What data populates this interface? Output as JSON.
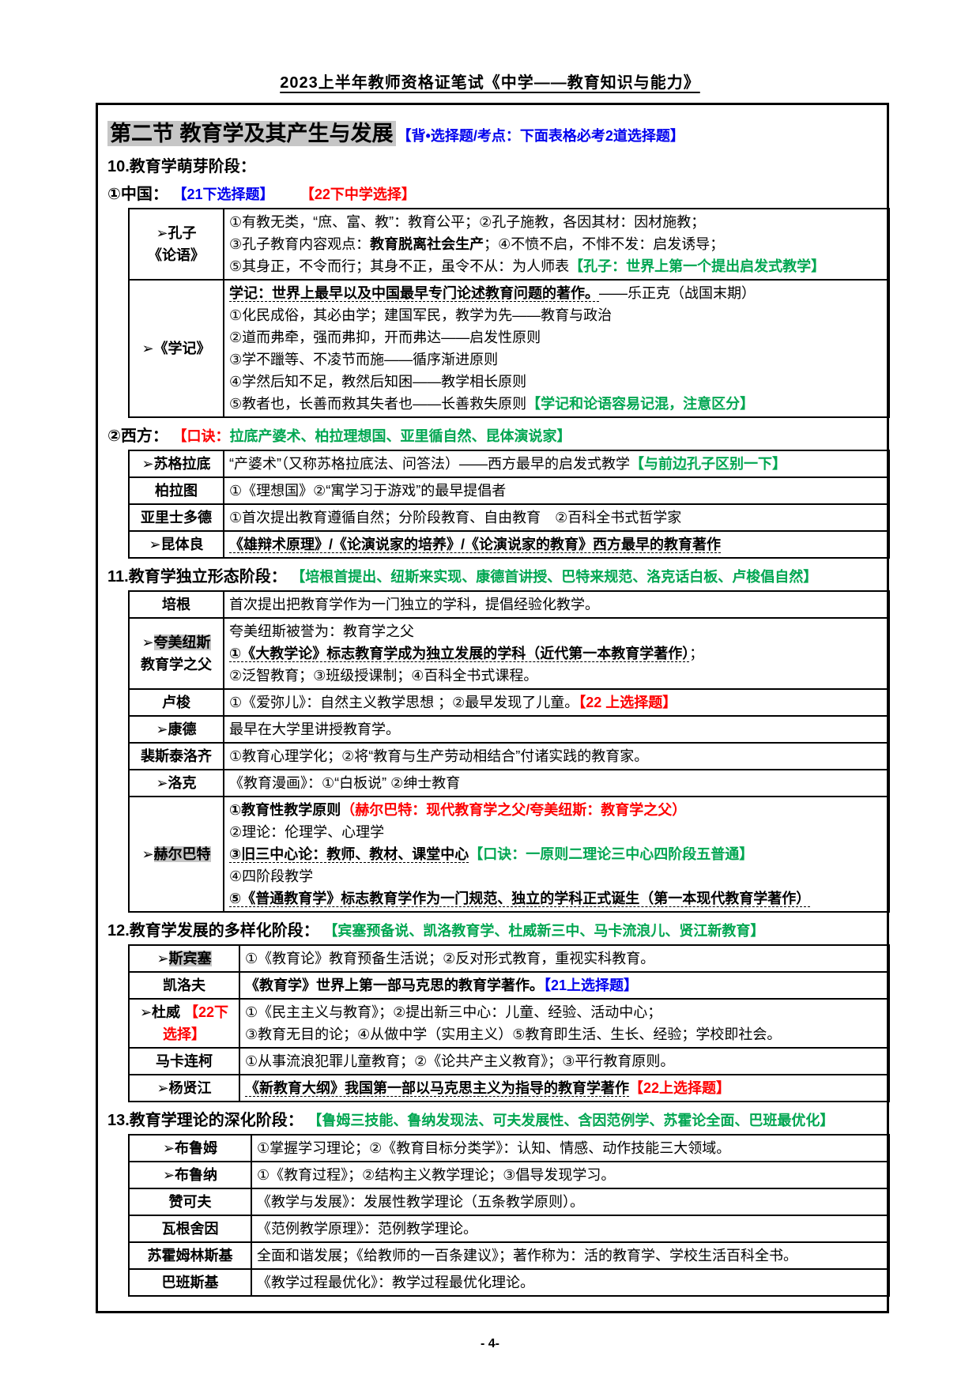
{
  "page": {
    "header": "2023上半年教师资格证笔试《中学——教育知识与能力》",
    "footer": "- 4-"
  },
  "section": {
    "title": "第二节 教育学及其产生与发展",
    "note": "【背•选择题/考点：下面表格必考2道选择题】"
  },
  "colors": {
    "green": "#00a651",
    "red": "#fe0000",
    "blue": "#0000ee",
    "highlight": "#c6c6c6"
  },
  "headings": {
    "stage10": "10.教育学萌芽阶段：",
    "china": [
      {
        "t": "①中国： ",
        "b": 1
      },
      {
        "t": "【21下选择题】",
        "c": "b",
        "b": 1,
        "n": "exam-tag-blue"
      },
      {
        "t": "      "
      },
      {
        "t": "【22下中学选择】",
        "c": "r",
        "b": 1,
        "n": "exam-tag-red"
      }
    ],
    "west": [
      {
        "t": "②西方： ",
        "b": 1
      },
      {
        "t": "【口诀：",
        "c": "r",
        "b": 1,
        "n": "mnemonic-bracket"
      },
      {
        "t": "拉底产婆术、柏拉理想国、亚里循自然、昆体演说家】",
        "c": "g",
        "b": 1,
        "n": "mnemonic-text"
      }
    ],
    "stage11": [
      {
        "t": "11.教育学独立形态阶段： ",
        "b": 1
      },
      {
        "t": "【培根首提出、纽斯来实现、康德首讲授、巴特来规范、洛克话白板、卢梭倡自然】",
        "c": "g",
        "b": 1,
        "n": "mnemonic-text"
      }
    ],
    "stage12": [
      {
        "t": "12.教育学发展的多样化阶段： ",
        "b": 1
      },
      {
        "t": "【宾塞预备说、凯洛教育学、杜威新三中、马卡流浪儿、贤江新教育】",
        "c": "g",
        "b": 1,
        "n": "mnemonic-text"
      }
    ],
    "stage13": [
      {
        "t": "13.教育学理论的深化阶段： ",
        "b": 1
      },
      {
        "t": "【鲁姆三技能、鲁纳发现法、可夫发展性、含因范例学、苏霍论全面、巴班最优化】",
        "c": "g",
        "b": 1,
        "n": "mnemonic-text"
      }
    ]
  },
  "tables": {
    "china": {
      "rows": [
        {
          "head": [
            [
              {
                "t": "➢孔子",
                "b": 1
              }
            ],
            [
              {
                "t": "《论语》",
                "b": 1
              }
            ]
          ],
          "lines": [
            [
              "①有教无类，“庶、富、教”：教育公平；②孔子施教，各因其材：因材施教；"
            ],
            [
              "③孔子教育内容观点：",
              {
                "t": "教育脱离社会生产",
                "b": 1
              },
              "；④不愤不启，不悱不发：启发诱导；"
            ],
            [
              "⑤其身正，不令而行；其身不正，虽令不从：为人师表",
              {
                "t": "【孔子：世界上第一个提出启发式教学】",
                "c": "g",
                "b": 1,
                "n": "note-green"
              }
            ]
          ]
        },
        {
          "head": [
            [
              {
                "t": "➢《学记》",
                "b": 1
              }
            ]
          ],
          "lines": [
            [
              {
                "t": "学记：世界上最早以及中国最早专门论述教育问题的著作。",
                "b": 1,
                "u": 1
              },
              "——乐正克（战国末期）"
            ],
            [
              "①化民成俗，其必由学；建国军民，教学为先——教育与政治"
            ],
            [
              "②道而弗牵，强而弗抑，开而弗达——启发性原则"
            ],
            [
              "③学不躐等、不凌节而施——循序渐进原则"
            ],
            [
              "④学然后知不足，教然后知困——教学相长原则"
            ],
            [
              "⑤教者也，长善而救其失者也——长善救失原则",
              {
                "t": "【学记和论语容易记混，注意区分】",
                "c": "g",
                "b": 1,
                "n": "note-green"
              }
            ]
          ]
        }
      ]
    },
    "west": {
      "rows": [
        {
          "head": [
            [
              {
                "t": "➢苏格拉底",
                "b": 1
              }
            ]
          ],
          "lines": [
            [
              "“产婆术”（又称苏格拉底法、问答法）——西方最早的启发式教学",
              {
                "t": "【与前边孔子区别一下】",
                "c": "g",
                "b": 1,
                "n": "note-green"
              }
            ]
          ]
        },
        {
          "head": [
            [
              "柏拉图"
            ]
          ],
          "lines": [
            [
              "①《理想国》②“寓学习于游戏”的最早提倡者"
            ]
          ]
        },
        {
          "head": [
            [
              "亚里士多德"
            ]
          ],
          "lines": [
            [
              "①首次提出教育遵循自然；分阶段教育、自由教育　②百科全书式哲学家"
            ]
          ]
        },
        {
          "head": [
            [
              {
                "t": "➢昆体良",
                "b": 1
              }
            ]
          ],
          "lines": [
            [
              {
                "t": "《雄辩术原理》/《论演说家的培养》/《论演说家的教育》西方最早的教育著作",
                "b": 1,
                "u": 1
              }
            ]
          ]
        }
      ]
    },
    "independent": {
      "rows": [
        {
          "head": [
            [
              "培根"
            ]
          ],
          "lines": [
            [
              "首次提出把教育学作为一门独立的学科，提倡经验化教学。"
            ]
          ]
        },
        {
          "head": [
            [
              {
                "t": "➢",
                "b": 1
              },
              {
                "t": "夸美纽斯",
                "b": 1,
                "h": 1
              }
            ],
            [
              {
                "t": "教育学之父",
                "b": 1
              }
            ]
          ],
          "lines": [
            [
              "夸美纽斯被誉为：教育学之父"
            ],
            [
              {
                "t": "①《大教学论》标志教育学成为独立发展的学科（近代第一本教育学著作）",
                "b": 1,
                "u": 1
              },
              "；"
            ],
            [
              "②泛智教育；③班级授课制；④百科全书式课程。"
            ]
          ]
        },
        {
          "head": [
            [
              "卢梭"
            ]
          ],
          "lines": [
            [
              "①《爱弥儿》：自然主义教学思想 ；②最早发现了儿童。",
              {
                "t": "【22 上选择题】",
                "c": "r",
                "b": 1,
                "n": "exam-tag-red"
              }
            ]
          ]
        },
        {
          "head": [
            [
              {
                "t": "➢康德",
                "b": 1
              }
            ]
          ],
          "lines": [
            [
              "最早在大学里讲授教育学。"
            ]
          ]
        },
        {
          "head": [
            [
              "裴斯泰洛齐"
            ]
          ],
          "lines": [
            [
              "①教育心理学化；②将“教育与生产劳动相结合”付诸实践的教育家。"
            ]
          ]
        },
        {
          "head": [
            [
              {
                "t": "➢洛克",
                "b": 1
              }
            ]
          ],
          "lines": [
            [
              "《教育漫画》：①“白板说” ②绅士教育"
            ]
          ]
        },
        {
          "head": [
            [
              {
                "t": "➢",
                "b": 1
              },
              {
                "t": "赫尔巴特",
                "b": 1,
                "h": 1
              }
            ]
          ],
          "lines": [
            [
              {
                "t": "①教育性教学原则",
                "b": 1
              },
              {
                "t": "（赫尔巴特：现代教育学之父/夸美纽斯：教育学之父）",
                "c": "r",
                "b": 1,
                "n": "note-red"
              }
            ],
            [
              "②理论：伦理学、心理学"
            ],
            [
              {
                "t": "③旧三中心论：教师、教材、课堂中心",
                "b": 1,
                "u": 1
              },
              {
                "t": "【口诀：一原则二理论三中心四阶段五普通】",
                "c": "g",
                "b": 1,
                "n": "note-green"
              }
            ],
            [
              "④四阶段教学"
            ],
            [
              {
                "t": "⑤《普通教育学》标志教育学作为一门规范、独立的学科正式诞生（第一本现代教育学著作）",
                "b": 1,
                "u": 1
              }
            ]
          ]
        }
      ]
    },
    "diversification": {
      "rows": [
        {
          "head": [
            [
              {
                "t": "➢",
                "b": 1
              },
              {
                "t": "斯宾塞",
                "b": 1,
                "h": 1
              }
            ]
          ],
          "lines": [
            [
              "①《教育论》教育预备生活说；②反对形式教育，重视实科教育。"
            ]
          ]
        },
        {
          "head": [
            [
              "凯洛夫"
            ]
          ],
          "lines": [
            [
              {
                "t": "《教育学》世界上第一部马克思的教育学著作。",
                "b": 1
              },
              {
                "t": "【21上选择题】",
                "c": "b",
                "b": 1,
                "n": "exam-tag-blue"
              }
            ]
          ]
        },
        {
          "head": [
            [
              {
                "t": "➢杜威 ",
                "b": 1
              },
              {
                "t": "【22下",
                "c": "r",
                "b": 1,
                "n": "exam-tag-red"
              }
            ],
            [
              {
                "t": "选择】",
                "c": "r",
                "b": 1,
                "n": "exam-tag-red"
              }
            ]
          ],
          "lines": [
            [
              "①《民主主义与教育》；②提出新三中心：儿童、经验、活动中心；"
            ],
            [
              "③教育无目的论；④从做中学（实用主义）⑤教育即生活、生长、经验；学校即社会。"
            ]
          ]
        },
        {
          "head": [
            [
              "马卡连柯"
            ]
          ],
          "lines": [
            [
              "①从事流浪犯罪儿童教育；②《论共产主义教育》；③平行教育原则。"
            ]
          ]
        },
        {
          "head": [
            [
              {
                "t": "➢杨贤江",
                "b": 1
              }
            ]
          ],
          "lines": [
            [
              {
                "t": "《新教育大纲》我国第一部以马克思主义为指导的教育学著作",
                "b": 1,
                "u": 1
              },
              {
                "t": "【22上选择题】",
                "c": "r",
                "b": 1,
                "n": "exam-tag-red"
              }
            ]
          ]
        }
      ]
    },
    "deepening": {
      "rows": [
        {
          "head": [
            [
              {
                "t": "➢布鲁姆",
                "b": 1
              }
            ]
          ],
          "lines": [
            [
              "①掌握学习理论；②《教育目标分类学》：认知、情感、动作技能三大领域。"
            ]
          ]
        },
        {
          "head": [
            [
              {
                "t": "➢布鲁纳",
                "b": 1
              }
            ]
          ],
          "lines": [
            [
              "①《教育过程》；②结构主义教学理论；③倡导发现学习。"
            ]
          ]
        },
        {
          "head": [
            [
              "赞可夫"
            ]
          ],
          "lines": [
            [
              "《教学与发展》：发展性教学理论（五条教学原则）。"
            ]
          ]
        },
        {
          "head": [
            [
              "瓦根舍因"
            ]
          ],
          "lines": [
            [
              "《范例教学原理》：范例教学理论。"
            ]
          ]
        },
        {
          "head": [
            [
              "苏霍姆林斯基"
            ]
          ],
          "lines": [
            [
              "全面和谐发展；《给教师的一百条建议》；著作称为：活的教育学、学校生活百科全书。"
            ]
          ]
        },
        {
          "head": [
            [
              "巴班斯基"
            ]
          ],
          "lines": [
            [
              "《教学过程最优化》：教学过程最优化理论。"
            ]
          ]
        }
      ]
    }
  }
}
